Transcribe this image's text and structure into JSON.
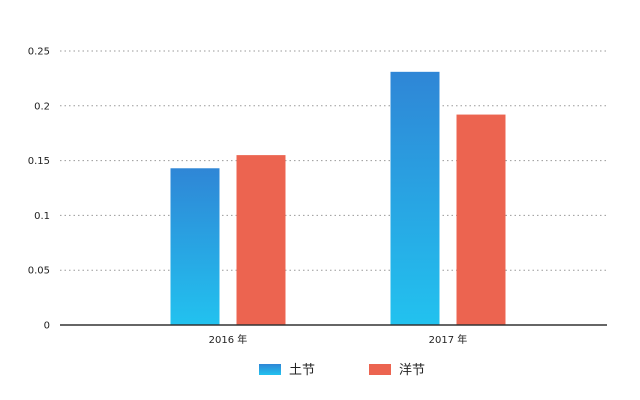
{
  "chart_data": {
    "type": "bar",
    "title": "",
    "xlabel": "",
    "ylabel": "",
    "categories": [
      "2016 年",
      "2017 年"
    ],
    "series": [
      {
        "name": "土节",
        "values": [
          0.143,
          0.231
        ],
        "color": "#2f86d6",
        "color_light": "#22c2ef"
      },
      {
        "name": "洋节",
        "values": [
          0.155,
          0.192
        ],
        "color": "#ec6450"
      }
    ],
    "ylim": [
      0,
      0.25
    ],
    "yticks": [
      "0",
      "0.05",
      "0.1",
      "0.15",
      "0.2",
      "0.25"
    ],
    "ytick_values": [
      0,
      0.05,
      0.1,
      0.15,
      0.2,
      0.25
    ],
    "grid": true,
    "legend_position": "bottom-center"
  }
}
